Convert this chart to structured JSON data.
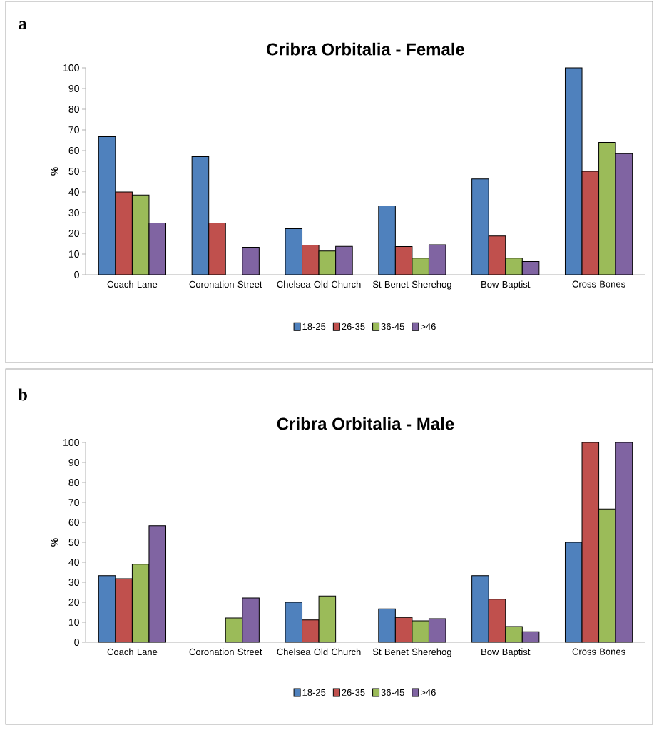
{
  "chart_data": [
    {
      "type": "bar",
      "title": "Cribra Orbitalia - Female",
      "ylabel": "%",
      "annotations": [
        "a"
      ],
      "categories": [
        "Coach Lane",
        "Coronation Street",
        "Chelsea Old Church",
        "St Benet Sherehog",
        "Bow Baptist",
        "Cross Bones"
      ],
      "series": [
        {
          "name": "18-25",
          "color": "#4f81bd",
          "values": [
            66.7,
            57.1,
            22.2,
            33.3,
            46.3,
            100
          ]
        },
        {
          "name": "26-35",
          "color": "#c0504d",
          "values": [
            40,
            25,
            14.3,
            13.6,
            18.7,
            50
          ]
        },
        {
          "name": "36-45",
          "color": "#9bbb59",
          "values": [
            38.5,
            null,
            11.5,
            8,
            8,
            64
          ]
        },
        {
          "name": ">46",
          "color": "#8064a2",
          "values": [
            25,
            13.3,
            13.7,
            14.5,
            6.4,
            58.5
          ]
        }
      ],
      "ylim": [
        0,
        100
      ],
      "yticks": [
        0,
        10,
        20,
        30,
        40,
        50,
        60,
        70,
        80,
        90,
        100
      ],
      "legend": "bottom",
      "grid": false
    },
    {
      "type": "bar",
      "title": "Cribra Orbitalia - Male",
      "ylabel": "%",
      "annotations": [
        "b"
      ],
      "categories": [
        "Coach Lane",
        "Coronation Street",
        "Chelsea Old Church",
        "St Benet Sherehog",
        "Bow Baptist",
        "Cross Bones"
      ],
      "series": [
        {
          "name": "18-25",
          "color": "#4f81bd",
          "values": [
            33.3,
            null,
            20,
            16.7,
            33.3,
            50
          ]
        },
        {
          "name": "26-35",
          "color": "#c0504d",
          "values": [
            31.8,
            null,
            11.2,
            12.4,
            21.5,
            100
          ]
        },
        {
          "name": "36-45",
          "color": "#9bbb59",
          "values": [
            39,
            12.1,
            23.1,
            10.7,
            7.9,
            66.7
          ]
        },
        {
          "name": ">46",
          "color": "#8064a2",
          "values": [
            58.3,
            22.1,
            null,
            11.8,
            5.3,
            100
          ]
        }
      ],
      "ylim": [
        0,
        100
      ],
      "yticks": [
        0,
        10,
        20,
        30,
        40,
        50,
        60,
        70,
        80,
        90,
        100
      ],
      "legend": "bottom",
      "grid": false
    }
  ]
}
